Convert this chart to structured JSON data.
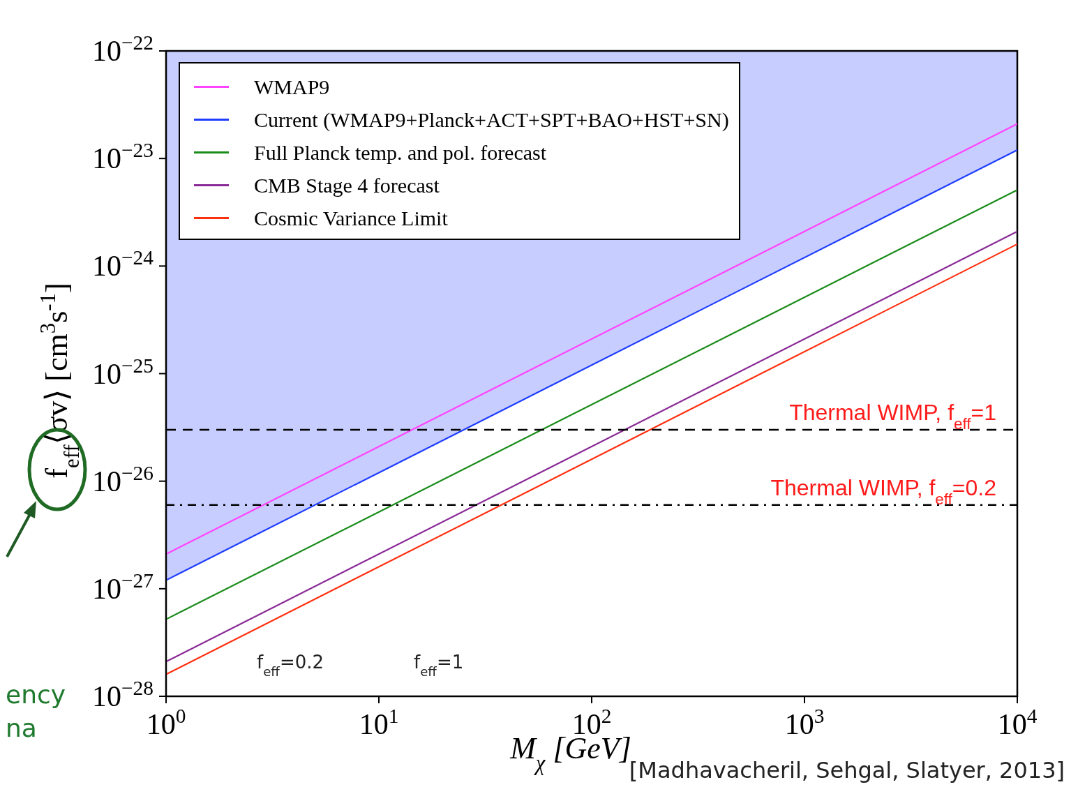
{
  "chart_data": {
    "type": "line",
    "xlabel": "M$_{χ}$ [GeV]",
    "ylabel": "f$_{eff}$⟨σv⟩ [cm$^{3}$s$^{-1}$]",
    "x": [
      1,
      10000
    ],
    "series": [
      {
        "name": "WMAP9",
        "color": "#ff44ff",
        "values": [
          2.1e-27,
          2.1e-23
        ]
      },
      {
        "name": "Current (WMAP9+Planck+ACT+SPT+BAO+HST+SN)",
        "color": "#1e3cff",
        "values": [
          1.2e-27,
          1.2e-23
        ],
        "lower": [
          1.2e-27,
          1.2e-23
        ],
        "upper": [
          1e-22,
          1e-22
        ]
      },
      {
        "name": "Full Planck temp. and pol. forecast",
        "color": "#1a8c1a",
        "values": [
          5.2e-28,
          5.1e-24
        ]
      },
      {
        "name": "CMB Stage 4 forecast",
        "color": "#8a2a96",
        "values": [
          2.1e-28,
          2.1e-24
        ]
      },
      {
        "name": "Cosmic Variance Limit",
        "color": "#ff3010",
        "values": [
          1.6e-28,
          1.6e-24
        ]
      }
    ],
    "log": "xy",
    "xlim": [
      1,
      10000
    ],
    "ylim": [
      1e-28,
      1e-22
    ],
    "xticks": [
      {
        "value": 1,
        "label": "10$^{0}$"
      },
      {
        "value": 10,
        "label": "10$^{1}$"
      },
      {
        "value": 100,
        "label": "10$^{2}$"
      },
      {
        "value": 1000,
        "label": "10$^{3}$"
      },
      {
        "value": 10000,
        "label": "10$^{4}$"
      }
    ],
    "yticks": [
      {
        "value": 1e-28,
        "label": "10$^{−28}$"
      },
      {
        "value": 1e-27,
        "label": "10$^{−27}$"
      },
      {
        "value": 1e-26,
        "label": "10$^{−26}$"
      },
      {
        "value": 1e-25,
        "label": "10$^{−25}$"
      },
      {
        "value": 1e-24,
        "label": "10$^{−24}$"
      },
      {
        "value": 1e-23,
        "label": "10$^{−23}$"
      },
      {
        "value": 1e-22,
        "label": "10$^{−22}$"
      }
    ],
    "ref_lines": [
      {
        "axis": "y",
        "value": 3e-26,
        "color": "#000000",
        "line_style": "dashed"
      },
      {
        "axis": "y",
        "value": 6e-27,
        "color": "#000000",
        "line_style": "dashdot"
      }
    ],
    "annotations": [
      "f$_{eff}$=0.2",
      "f$_{eff}$=1",
      "[Madhavacheril, Sehgal, Slatyer, 2013]",
      "ency",
      "na",
      {
        "text": "Thermal WIMP, f$_{eff}$=1",
        "y": 3e-26
      },
      {
        "text": "Thermal WIMP, f$_{eff}$=0.2",
        "y": 6e-27
      }
    ],
    "legend": "top left",
    "marker": "none",
    "line_style": "solid"
  }
}
